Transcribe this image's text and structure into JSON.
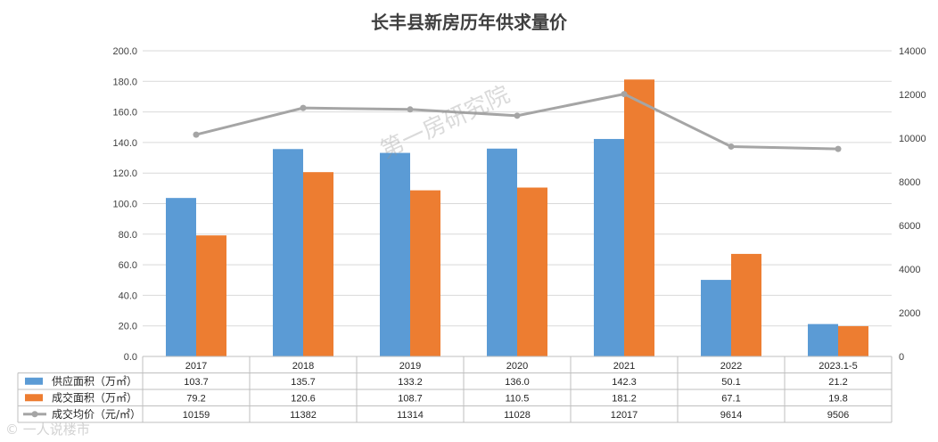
{
  "chart_data": {
    "type": "bar",
    "title": "长丰县新房历年供求量价",
    "categories": [
      "2017",
      "2018",
      "2019",
      "2020",
      "2021",
      "2022",
      "2023.1-5"
    ],
    "series": [
      {
        "name": "供应面积（万㎡）",
        "type": "bar",
        "axis": "left",
        "color": "#5b9bd5",
        "values": [
          103.7,
          135.7,
          133.2,
          136.0,
          142.3,
          50.1,
          21.2
        ],
        "labels": [
          "103.7",
          "135.7",
          "133.2",
          "136.0",
          "142.3",
          "50.1",
          "21.2"
        ]
      },
      {
        "name": "成交面积（万㎡）",
        "type": "bar",
        "axis": "left",
        "color": "#ed7d31",
        "values": [
          79.2,
          120.6,
          108.7,
          110.5,
          181.2,
          67.1,
          19.8
        ],
        "labels": [
          "79.2",
          "120.6",
          "108.7",
          "110.5",
          "181.2",
          "67.1",
          "19.8"
        ]
      },
      {
        "name": "成交均价（元/㎡）",
        "type": "line",
        "axis": "right",
        "color": "#a5a5a5",
        "values": [
          10159,
          11382,
          11314,
          11028,
          12017,
          9614,
          9506
        ],
        "labels": [
          "10159",
          "11382",
          "11314",
          "11028",
          "12017",
          "9614",
          "9506"
        ]
      }
    ],
    "y_left": {
      "min": 0,
      "max": 200,
      "ticks": [
        "0.0",
        "20.0",
        "40.0",
        "60.0",
        "80.0",
        "100.0",
        "120.0",
        "140.0",
        "160.0",
        "180.0",
        "200.0"
      ]
    },
    "y_right": {
      "min": 0,
      "max": 14000,
      "ticks": [
        "0",
        "2000",
        "4000",
        "6000",
        "8000",
        "10000",
        "12000",
        "14000"
      ]
    },
    "grid": true,
    "legend": "data-table"
  },
  "watermark": "第一房研究院",
  "source_mark": "© 一人说楼市"
}
